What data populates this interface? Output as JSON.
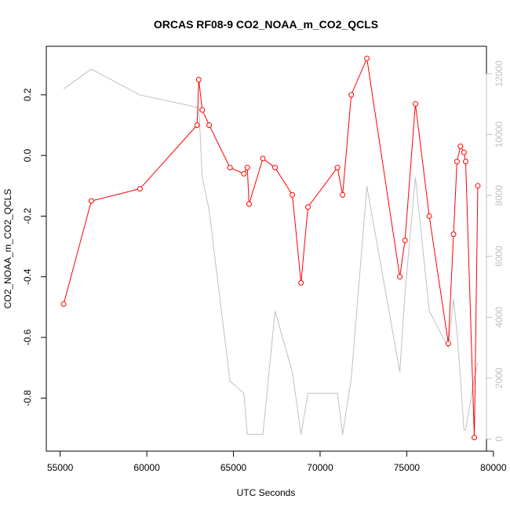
{
  "chart_data": {
    "type": "line",
    "title": "ORCAS RF08-9 CO2_NOAA_m_CO2_QCLS",
    "xlabel": "UTC Seconds",
    "ylabel": "CO2_NOAA_m_CO2_QCLS",
    "xlim": [
      54200,
      79600
    ],
    "ylim": [
      -0.975,
      0.36
    ],
    "y2lim": [
      -400,
      12900
    ],
    "x_ticks": [
      55000,
      60000,
      65000,
      70000,
      75000,
      80000
    ],
    "y_ticks": [
      -0.8,
      -0.6,
      -0.4,
      -0.2,
      0.0,
      0.2
    ],
    "y_tick_labels": [
      "-0.8",
      "-0.6",
      "-0.4",
      "-0.2",
      "0.0",
      "0.2"
    ],
    "y2_ticks": [
      0,
      2000,
      4000,
      6000,
      8000,
      10000,
      12000
    ],
    "colors": {
      "primary": "#ff0000",
      "secondary": "#c0c0c0",
      "axis": "#000000"
    },
    "series": [
      {
        "color": "#ff0000",
        "axis": "left",
        "markers": "open-circle",
        "points": [
          [
            55200,
            -0.49
          ],
          [
            56800,
            -0.15
          ],
          [
            59600,
            -0.11
          ],
          [
            62900,
            0.1
          ],
          [
            63000,
            0.25
          ],
          [
            63200,
            0.15
          ],
          [
            63600,
            0.1
          ],
          [
            64800,
            -0.04
          ],
          [
            65600,
            -0.06
          ],
          [
            65800,
            -0.04
          ],
          [
            65900,
            -0.16
          ],
          [
            66700,
            -0.01
          ],
          [
            67400,
            -0.04
          ],
          [
            68400,
            -0.13
          ],
          [
            68900,
            -0.42
          ],
          [
            69300,
            -0.17
          ],
          [
            71000,
            -0.04
          ],
          [
            71300,
            -0.13
          ],
          [
            71800,
            0.2
          ],
          [
            72700,
            0.32
          ],
          [
            74600,
            -0.4
          ],
          [
            74900,
            -0.28
          ],
          [
            75500,
            0.17
          ],
          [
            76300,
            -0.2
          ],
          [
            77400,
            -0.62
          ],
          [
            77700,
            -0.26
          ],
          [
            77900,
            -0.02
          ],
          [
            78100,
            0.03
          ],
          [
            78300,
            0.01
          ],
          [
            78400,
            -0.02
          ],
          [
            78900,
            -0.93
          ],
          [
            79100,
            -0.1
          ]
        ]
      },
      {
        "color": "#c0c0c0",
        "axis": "right",
        "markers": "none",
        "points": [
          [
            55200,
            11500
          ],
          [
            56800,
            12150
          ],
          [
            59600,
            11300
          ],
          [
            62900,
            10900
          ],
          [
            63000,
            10900
          ],
          [
            63200,
            8600
          ],
          [
            63600,
            7500
          ],
          [
            64800,
            1900
          ],
          [
            65600,
            1500
          ],
          [
            65800,
            150
          ],
          [
            65900,
            150
          ],
          [
            66700,
            150
          ],
          [
            67400,
            4200
          ],
          [
            68400,
            2200
          ],
          [
            68900,
            150
          ],
          [
            69300,
            1500
          ],
          [
            71000,
            1500
          ],
          [
            71300,
            150
          ],
          [
            71800,
            2000
          ],
          [
            72700,
            8300
          ],
          [
            74600,
            2200
          ],
          [
            74900,
            4800
          ],
          [
            75500,
            8600
          ],
          [
            76300,
            4200
          ],
          [
            77400,
            3000
          ],
          [
            77700,
            4600
          ],
          [
            77900,
            3500
          ],
          [
            78100,
            2000
          ],
          [
            78300,
            300
          ],
          [
            78400,
            300
          ],
          [
            78900,
            2000
          ],
          [
            79100,
            2500
          ]
        ]
      }
    ]
  }
}
